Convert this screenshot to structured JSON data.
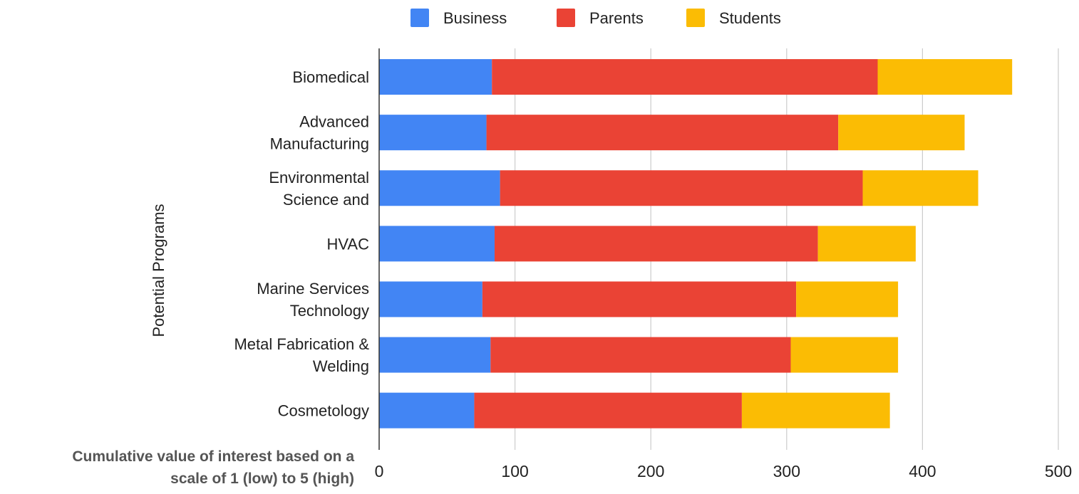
{
  "chart_data": {
    "type": "bar",
    "orientation": "horizontal",
    "stacked": true,
    "categories": [
      [
        "Biomedical"
      ],
      [
        "Advanced",
        "Manufacturing"
      ],
      [
        "Environmental",
        "Science and"
      ],
      [
        "HVAC"
      ],
      [
        "Marine Services",
        "Technology"
      ],
      [
        "Metal Fabrication &",
        "Welding"
      ],
      [
        "Cosmetology"
      ]
    ],
    "series": [
      {
        "name": "Business",
        "color": "#4285f4",
        "values": [
          83,
          79,
          89,
          85,
          76,
          82,
          70
        ]
      },
      {
        "name": "Parents",
        "color": "#ea4335",
        "values": [
          284,
          259,
          267,
          238,
          231,
          221,
          197
        ]
      },
      {
        "name": "Students",
        "color": "#fbbc04",
        "values": [
          99,
          93,
          85,
          72,
          75,
          79,
          109
        ]
      }
    ],
    "xlim": [
      0,
      500
    ],
    "xticks": [
      0,
      100,
      200,
      300,
      400,
      500
    ],
    "xlabel": [
      "Cumulative value of interest based on a",
      "scale of 1 (low) to 5 (high)"
    ],
    "ylabel": "Potential Programs",
    "legend_position": "top",
    "grid": true
  }
}
